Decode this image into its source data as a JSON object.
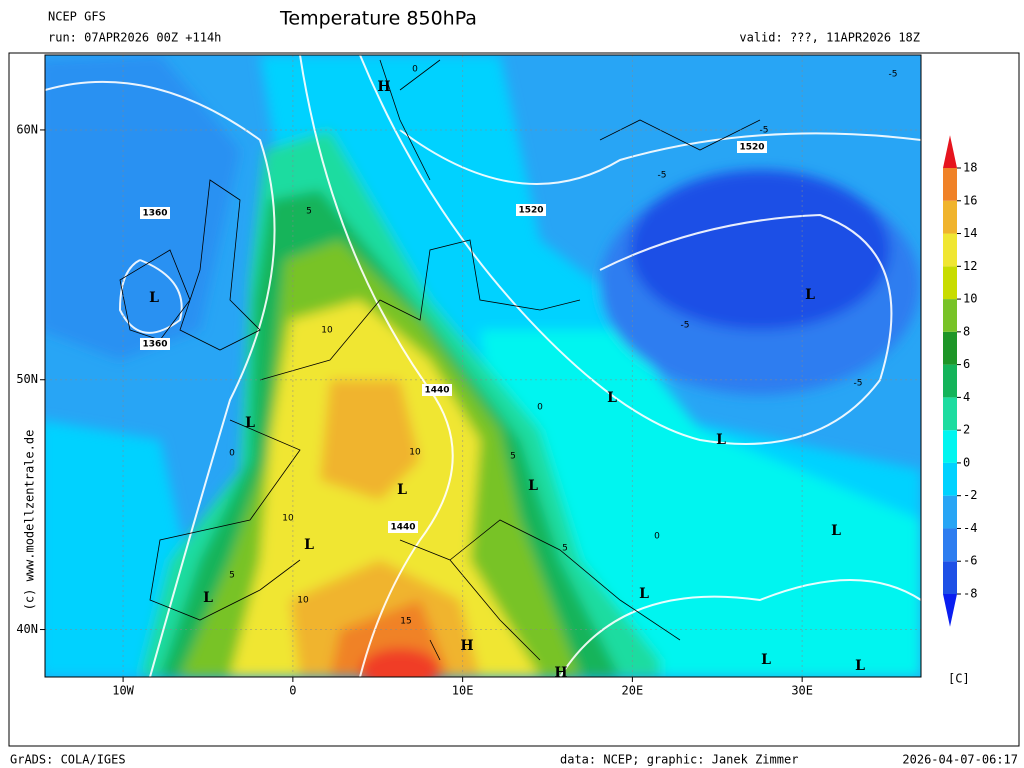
{
  "header": {
    "model": "NCEP GFS",
    "title": "Temperature 850hPa",
    "run": "run: 07APR2026 00Z +114h",
    "valid": "valid: ???, 11APR2026 18Z"
  },
  "map": {
    "xlim": [
      -14.6,
      37.0
    ],
    "ylim": [
      38.1,
      63.0
    ],
    "xticks": [
      {
        "value": -10,
        "label": "10W"
      },
      0,
      {
        "value": 10,
        "label": "10E"
      },
      {
        "value": 20,
        "label": "20E"
      },
      {
        "value": 30,
        "label": "30E"
      }
    ],
    "yticks": [
      {
        "value": 40,
        "label": "40N"
      },
      {
        "value": 50,
        "label": "50N"
      },
      {
        "value": 60,
        "label": "60N"
      }
    ],
    "contour_labels": [
      "1360",
      "1360",
      "1440",
      "1440",
      "1520",
      "1520",
      "-5",
      "-5",
      "-5",
      "-5",
      "-5",
      "0",
      "0",
      "0",
      "5",
      "5",
      "5",
      "5",
      "10",
      "10",
      "10",
      "10",
      "15",
      "0"
    ],
    "centers": [
      "L",
      "L",
      "L",
      "L",
      "L",
      "L",
      "L",
      "L",
      "L",
      "L",
      "L",
      "H",
      "H",
      "H",
      "L",
      "L"
    ]
  },
  "colorbar": {
    "ticks": [
      -8,
      -6,
      -4,
      -2,
      0,
      2,
      4,
      6,
      8,
      10,
      12,
      14,
      16,
      18
    ],
    "colors": [
      "#0a1ef0",
      "#1e50e6",
      "#2d7df0",
      "#28a5f5",
      "#00d2ff",
      "#00f5f0",
      "#1edca0",
      "#14b45a",
      "#1e9628",
      "#78c328",
      "#c8dc00",
      "#f0e632",
      "#f0b42d",
      "#f08228",
      "#f03c28",
      "#e6141e"
    ],
    "unit": "[C]"
  },
  "footer": {
    "credit": "(c) www.modellzentrale.de",
    "grads": "GrADS: COLA/IGES",
    "source": "data: NCEP; graphic: Janek Zimmer",
    "timestamp": "2026-04-07-06:17"
  }
}
